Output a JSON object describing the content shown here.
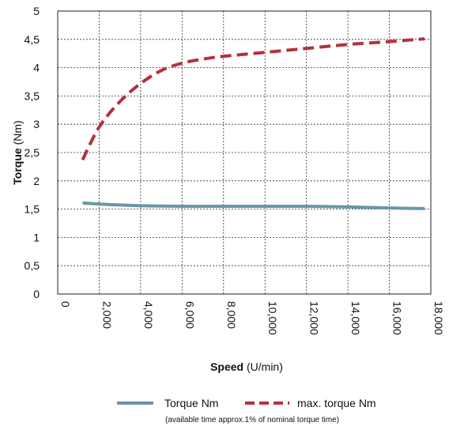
{
  "chart_data": {
    "type": "line",
    "xlabel": {
      "bold": "Speed",
      "rest": " (U/min)"
    },
    "ylabel": {
      "bold": "Torque",
      "rest": " (Nm)"
    },
    "xlim": [
      0,
      18000
    ],
    "ylim": [
      0,
      5
    ],
    "xticks": [
      "0",
      "2,000",
      "4,000",
      "6,000",
      "8,000",
      "10,000",
      "12,000",
      "14,000",
      "16,000",
      "18,000"
    ],
    "yticks": [
      "0",
      "0,5",
      "1",
      "1,5",
      "2",
      "2,5",
      "3",
      "3,5",
      "4",
      "4,5",
      "5"
    ],
    "grid": true,
    "legend_position": "bottom",
    "series": [
      {
        "name": "Torque Nm",
        "color": "#6a96a8",
        "style": "solid",
        "x": [
          1200,
          2000,
          4000,
          6000,
          8000,
          10000,
          12000,
          14000,
          16000,
          17700
        ],
        "y": [
          1.61,
          1.59,
          1.56,
          1.55,
          1.55,
          1.55,
          1.55,
          1.54,
          1.52,
          1.51
        ]
      },
      {
        "name": "max. torque Nm",
        "color": "#b5303e",
        "style": "dashed",
        "x": [
          1200,
          2000,
          3000,
          4000,
          5000,
          6000,
          7000,
          8000,
          10000,
          12000,
          14000,
          16000,
          17700
        ],
        "y": [
          2.37,
          2.95,
          3.4,
          3.72,
          3.95,
          4.08,
          4.15,
          4.2,
          4.27,
          4.34,
          4.41,
          4.46,
          4.51
        ]
      }
    ],
    "note": "(available time approx.1% of nominal torque time)"
  }
}
